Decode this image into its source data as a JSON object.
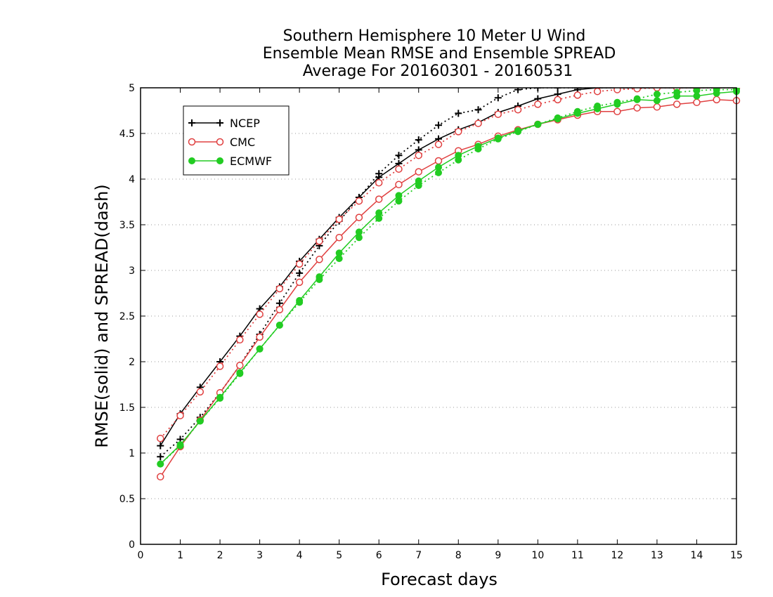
{
  "chart_data": {
    "type": "line",
    "title_lines": [
      "Southern Hemisphere 10 Meter U Wind",
      "Ensemble Mean RMSE and Ensemble SPREAD",
      "Average For 20160301 - 20160531"
    ],
    "xlabel": "Forecast days",
    "ylabel": "RMSE(solid) and SPREAD(dash)",
    "xlim": [
      0,
      15
    ],
    "ylim": [
      0,
      5
    ],
    "xticks": [
      "0",
      "1",
      "2",
      "3",
      "4",
      "5",
      "6",
      "7",
      "8",
      "9",
      "10",
      "11",
      "12",
      "13",
      "14",
      "15"
    ],
    "yticks": [
      "0",
      "0.5",
      "1",
      "1.5",
      "2",
      "2.5",
      "3",
      "3.5",
      "4",
      "4.5",
      "5"
    ],
    "grid": "horizontal dotted",
    "legend_position": "top-left",
    "x": [
      0.5,
      1,
      1.5,
      2,
      2.5,
      3,
      3.5,
      4,
      4.5,
      5,
      5.5,
      6,
      6.5,
      7,
      7.5,
      8,
      8.5,
      9,
      9.5,
      10,
      10.5,
      11,
      11.5,
      12,
      12.5,
      13,
      13.5,
      14,
      14.5,
      15
    ],
    "series": [
      {
        "name": "NCEP",
        "color": "#000000",
        "marker": "plus",
        "rmse": [
          1.08,
          1.43,
          1.72,
          2.0,
          2.28,
          2.58,
          2.82,
          3.1,
          3.34,
          3.58,
          3.8,
          4.02,
          4.17,
          4.32,
          4.44,
          4.54,
          4.62,
          4.73,
          4.8,
          4.88,
          4.93,
          4.98,
          5.0,
          5.0,
          5.0,
          5.0,
          5.0,
          5.0,
          5.0,
          5.0
        ],
        "spread": [
          0.96,
          1.15,
          1.39,
          1.66,
          1.96,
          2.3,
          2.64,
          2.97,
          3.27,
          3.54,
          3.8,
          4.06,
          4.26,
          4.43,
          4.59,
          4.72,
          4.76,
          4.89,
          4.98,
          5.0,
          5.0,
          5.0,
          5.0,
          5.0,
          5.0,
          5.0,
          5.0,
          5.0,
          5.0,
          5.0
        ]
      },
      {
        "name": "CMC",
        "color": "#e04040",
        "marker": "open-circle",
        "rmse": [
          0.74,
          1.07,
          1.36,
          1.66,
          1.96,
          2.27,
          2.57,
          2.87,
          3.12,
          3.36,
          3.58,
          3.78,
          3.94,
          4.08,
          4.2,
          4.31,
          4.38,
          4.47,
          4.54,
          4.6,
          4.65,
          4.7,
          4.74,
          4.74,
          4.78,
          4.79,
          4.82,
          4.84,
          4.87,
          4.86
        ],
        "spread": [
          1.16,
          1.41,
          1.67,
          1.95,
          2.24,
          2.52,
          2.8,
          3.07,
          3.32,
          3.56,
          3.76,
          3.96,
          4.11,
          4.26,
          4.38,
          4.52,
          4.61,
          4.71,
          4.76,
          4.82,
          4.87,
          4.92,
          4.96,
          4.98,
          4.99,
          5.0,
          5.0,
          5.0,
          5.0,
          5.0
        ]
      },
      {
        "name": "ECMWF",
        "color": "#22cc22",
        "marker": "filled-circle",
        "rmse": [
          0.88,
          1.09,
          1.35,
          1.61,
          1.88,
          2.14,
          2.4,
          2.67,
          2.93,
          3.19,
          3.42,
          3.63,
          3.82,
          3.98,
          4.13,
          4.26,
          4.36,
          4.45,
          4.53,
          4.6,
          4.66,
          4.72,
          4.77,
          4.82,
          4.87,
          4.86,
          4.91,
          4.91,
          4.94,
          4.96
        ],
        "spread": [
          0.88,
          1.08,
          1.35,
          1.6,
          1.87,
          2.14,
          2.4,
          2.65,
          2.9,
          3.13,
          3.36,
          3.57,
          3.76,
          3.93,
          4.07,
          4.21,
          4.33,
          4.44,
          4.52,
          4.6,
          4.67,
          4.74,
          4.8,
          4.84,
          4.88,
          4.93,
          4.95,
          4.97,
          4.98,
          4.98
        ]
      }
    ]
  }
}
